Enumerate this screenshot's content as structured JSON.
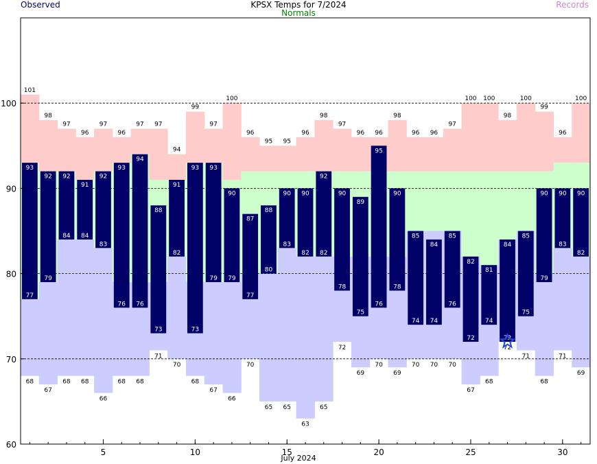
{
  "chart_data": {
    "type": "bar",
    "title": "KPSX Temps for 7/2024",
    "xlabel": "July 2024",
    "ylabel": "",
    "ylim": [
      60,
      110
    ],
    "y_ticks": [
      60,
      70,
      80,
      90,
      100
    ],
    "x_ticks": [
      5,
      10,
      15,
      20,
      25,
      30
    ],
    "grid_y": [
      70,
      80,
      90,
      100
    ],
    "legend": {
      "observed": "Observed",
      "normals": "Normals",
      "records": "Records"
    },
    "days": [
      1,
      2,
      3,
      4,
      5,
      6,
      7,
      8,
      9,
      10,
      11,
      12,
      13,
      14,
      15,
      16,
      17,
      18,
      19,
      20,
      21,
      22,
      23,
      24,
      25,
      26,
      27,
      28,
      29,
      30,
      31
    ],
    "series": [
      {
        "name": "Observed",
        "key": "obs_high",
        "values": [
          93,
          92,
          92,
          91,
          92,
          93,
          94,
          88,
          91,
          93,
          93,
          90,
          87,
          88,
          90,
          90,
          92,
          90,
          89,
          95,
          90,
          85,
          84,
          85,
          82,
          81,
          84,
          85,
          90,
          90,
          90
        ]
      },
      {
        "name": "Observed",
        "key": "obs_low",
        "values": [
          77,
          79,
          84,
          84,
          83,
          76,
          76,
          73,
          82,
          73,
          79,
          79,
          77,
          80,
          83,
          82,
          82,
          78,
          75,
          76,
          78,
          74,
          74,
          76,
          72,
          74,
          72,
          75,
          79,
          83,
          82
        ]
      },
      {
        "name": "Normals",
        "key": "normal_high",
        "values": [
          93,
          92,
          92,
          91,
          92,
          93,
          94,
          91,
          91,
          93,
          93,
          91,
          92,
          92,
          92,
          92,
          92,
          92,
          92,
          92,
          92,
          92,
          92,
          92,
          92,
          92,
          92,
          92,
          92,
          93,
          93
        ]
      },
      {
        "name": "Normals",
        "key": "normal_low",
        "values": [
          77,
          79,
          84,
          84,
          83,
          79,
          79,
          79,
          82,
          79,
          79,
          79,
          80,
          80,
          83,
          82,
          82,
          82,
          82,
          82,
          82,
          85,
          85,
          85,
          82,
          81,
          84,
          85,
          80,
          83,
          82
        ]
      },
      {
        "name": "Records",
        "key": "record_high",
        "values": [
          101,
          98,
          97,
          96,
          97,
          96,
          97,
          97,
          94,
          99,
          97,
          100,
          96,
          95,
          95,
          96,
          98,
          97,
          96,
          96,
          98,
          96,
          96,
          97,
          100,
          100,
          98,
          100,
          99,
          96,
          100
        ]
      },
      {
        "name": "Records",
        "key": "record_low",
        "values": [
          68,
          67,
          68,
          68,
          66,
          68,
          68,
          71,
          70,
          68,
          67,
          66,
          70,
          65,
          65,
          63,
          65,
          72,
          69,
          70,
          69,
          70,
          70,
          70,
          67,
          68,
          72,
          71,
          68,
          71,
          69
        ]
      }
    ],
    "marker": {
      "day": 27,
      "symbol": "star",
      "color": "#1f4fd6"
    }
  },
  "colors": {
    "observed": "#000066",
    "normal_band": "#ccffcc",
    "record_high_band": "#ffcccc",
    "record_low_band": "#ccccff",
    "grid": "#000000"
  }
}
